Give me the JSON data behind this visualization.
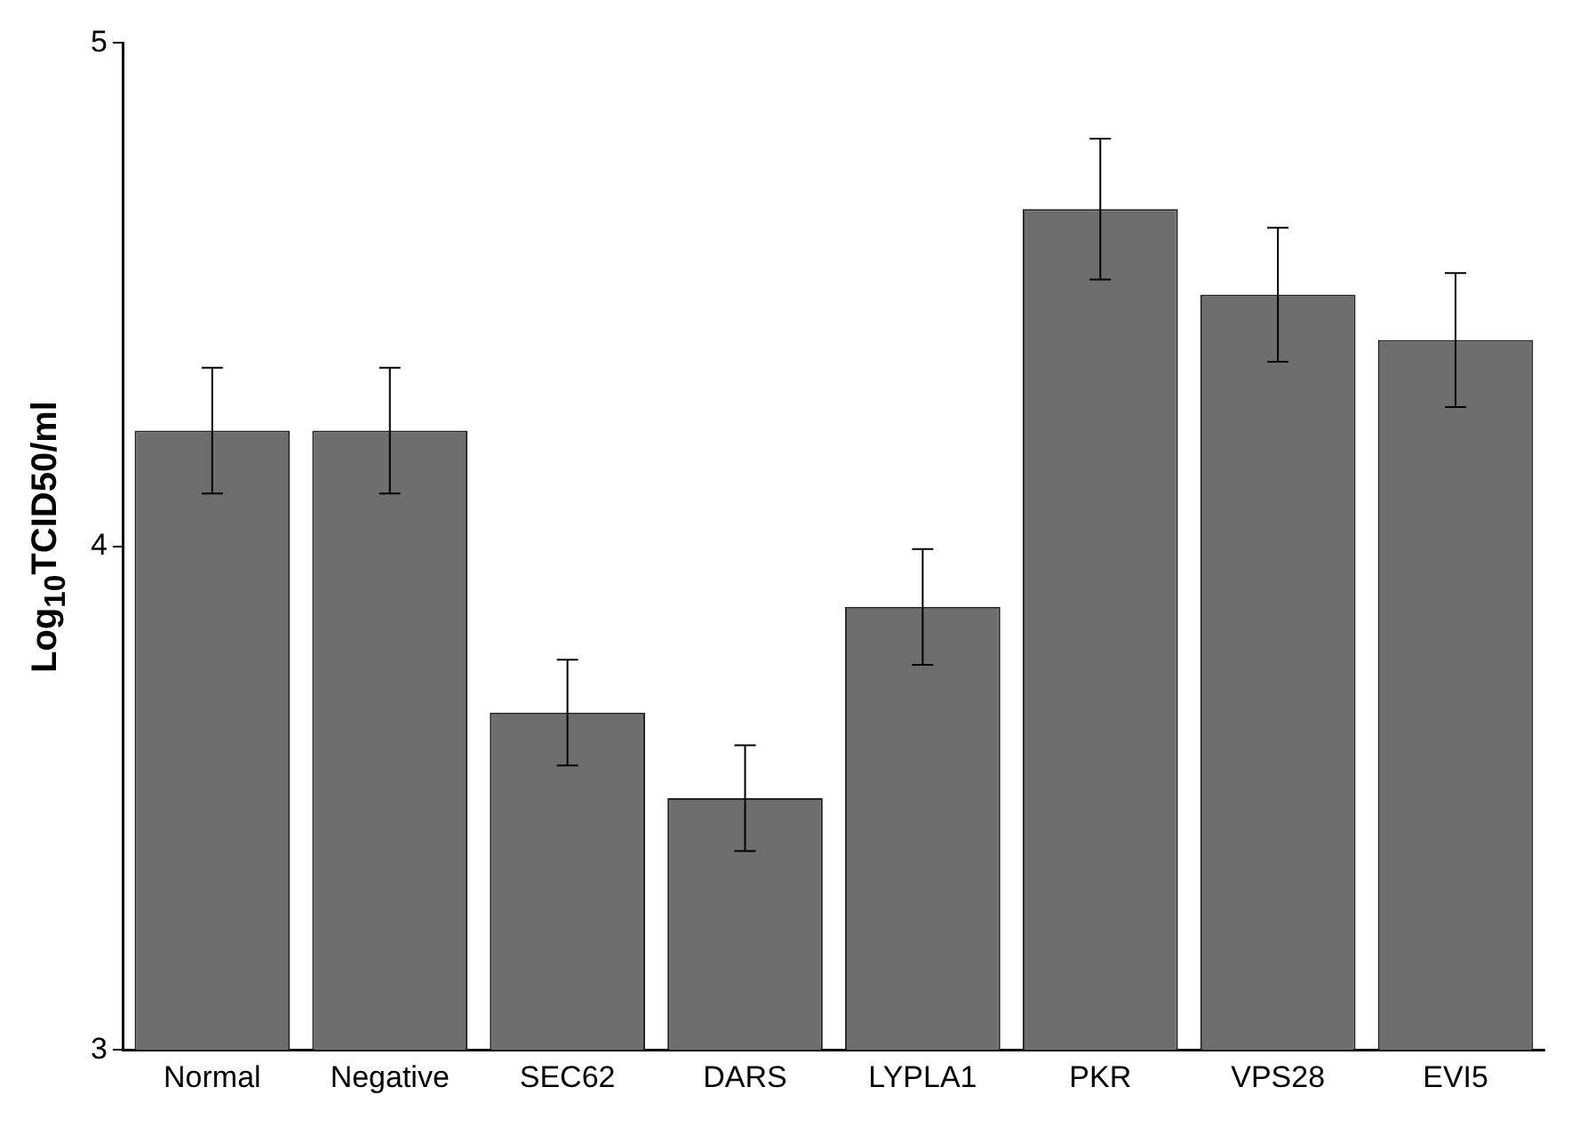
{
  "chart_data": {
    "type": "bar",
    "ylabel": "Log$_{10}$TCID50/ml",
    "categories": [
      "Normal",
      "Negative",
      "SEC62",
      "DARS",
      "LYPLA1",
      "PKR",
      "VPS28",
      "EVI5"
    ],
    "values": [
      4.23,
      4.23,
      3.67,
      3.5,
      3.88,
      4.67,
      4.5,
      4.41
    ],
    "errors": [
      0.125,
      0.125,
      0.105,
      0.105,
      0.115,
      0.14,
      0.133,
      0.133
    ],
    "color": "#6e6e6e",
    "ylim": [
      3,
      5
    ],
    "yticks": [
      3,
      4,
      5
    ],
    "grid": false,
    "legend": false
  }
}
